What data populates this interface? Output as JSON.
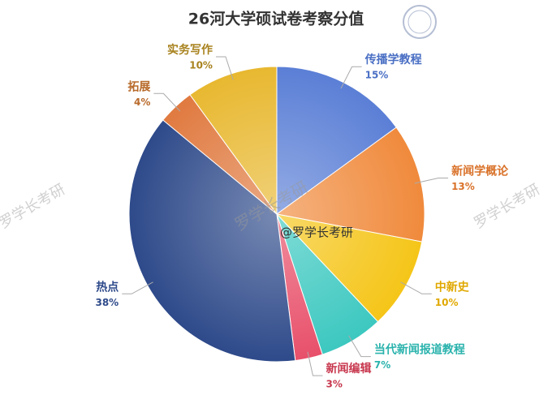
{
  "chart_data": {
    "type": "pie",
    "title": "26河大学硕试卷考察分值",
    "categories": [
      "传播学教程",
      "新闻学概论",
      "中新史",
      "当代新闻报道教程",
      "新闻编辑",
      "热点",
      "拓展",
      "实务写作"
    ],
    "values": [
      15,
      13,
      10,
      7,
      3,
      38,
      4,
      10
    ],
    "value_labels": [
      "15%",
      "13%",
      "10%",
      "7%",
      "3%",
      "38%",
      "4%",
      "10%"
    ],
    "colors": [
      "#5b7fd6",
      "#f08a3c",
      "#f5c518",
      "#3cc8c0",
      "#e8506a",
      "#2e4a8a",
      "#e07a40",
      "#e8b830"
    ],
    "label_colors": [
      "#4a6fc4",
      "#d9722a",
      "#e0a800",
      "#2bb3ad",
      "#c8394f",
      "#2e4a8a",
      "#b86a2a",
      "#a8821e"
    ],
    "watermarks": [
      "@罗学长考研",
      "罗学长考研",
      "罗学长考研",
      "罗学长考研"
    ]
  }
}
